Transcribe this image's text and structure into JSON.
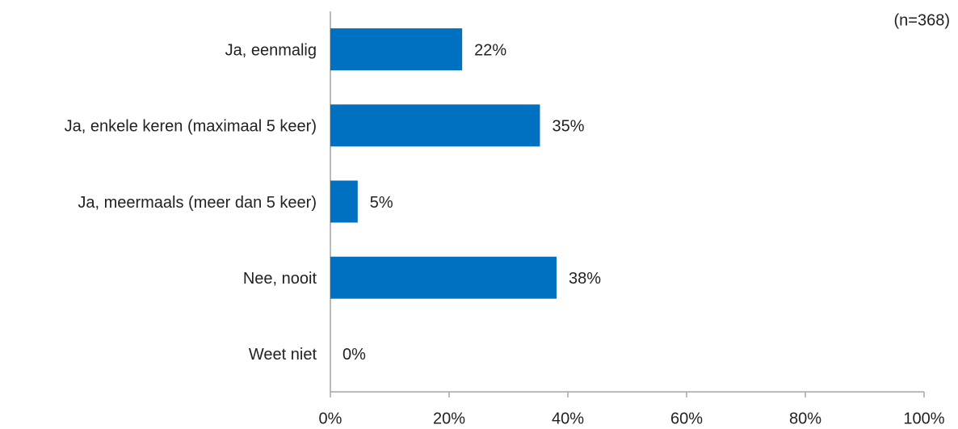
{
  "chart_data": {
    "type": "bar",
    "orientation": "horizontal",
    "annotation": "(n=368)",
    "categories": [
      "Ja, eenmalig",
      "Ja, enkele keren (maximaal 5 keer)",
      "Ja, meermaals (meer dan 5 keer)",
      "Nee, nooit",
      "Weet niet"
    ],
    "values": [
      22.2,
      35.3,
      4.6,
      38.1,
      0
    ],
    "value_labels": [
      "22%",
      "35%",
      "5%",
      "38%",
      "0%"
    ],
    "color": "#0070c0",
    "xlim": [
      0,
      100
    ],
    "xticks": [
      {
        "value": 0,
        "label": "0%"
      },
      {
        "value": 20,
        "label": "20%"
      },
      {
        "value": 40,
        "label": "40%"
      },
      {
        "value": 60,
        "label": "60%"
      },
      {
        "value": 80,
        "label": "80%"
      },
      {
        "value": 100,
        "label": "100%"
      }
    ],
    "grid": false
  }
}
